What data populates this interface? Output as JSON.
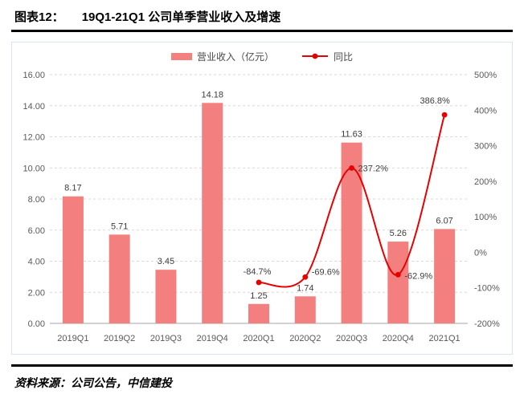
{
  "header": {
    "title_prefix": "图表12：",
    "title": "19Q1-21Q1 公司单季营业收入及增速"
  },
  "chart_data": {
    "type": "bar+line",
    "title": "19Q1-21Q1 公司单季营业收入及增速",
    "categories": [
      "2019Q1",
      "2019Q2",
      "2019Q3",
      "2019Q4",
      "2020Q1",
      "2020Q2",
      "2020Q3",
      "2020Q4",
      "2021Q1"
    ],
    "series": [
      {
        "name": "营业收入（亿元）",
        "type": "bar",
        "axis": "left",
        "color": "#f47f7f",
        "values": [
          8.17,
          5.71,
          3.45,
          14.18,
          1.25,
          1.74,
          11.63,
          5.26,
          6.07
        ]
      },
      {
        "name": "同比",
        "type": "line",
        "axis": "right",
        "color": "#e60000",
        "start_index": 4,
        "values": [
          -84.7,
          -69.6,
          237.2,
          -62.9,
          386.8
        ],
        "labels": [
          "-84.7%",
          "-69.6%",
          "237.2%",
          "-62.9%",
          "386.8%"
        ]
      }
    ],
    "left_axis": {
      "min": 0,
      "max": 16,
      "step": 2,
      "tick_labels": [
        "0.00",
        "2.00",
        "4.00",
        "6.00",
        "8.00",
        "10.00",
        "12.00",
        "14.00",
        "16.00"
      ]
    },
    "right_axis": {
      "min": -200,
      "max": 500,
      "step": 100,
      "tick_labels": [
        "-200%",
        "-100%",
        "0%",
        "100%",
        "200%",
        "300%",
        "400%",
        "500%"
      ]
    },
    "grid": "horizontal-dashed",
    "legend_position": "top-center"
  },
  "footer": {
    "source": "资料来源：公司公告，中信建投"
  }
}
